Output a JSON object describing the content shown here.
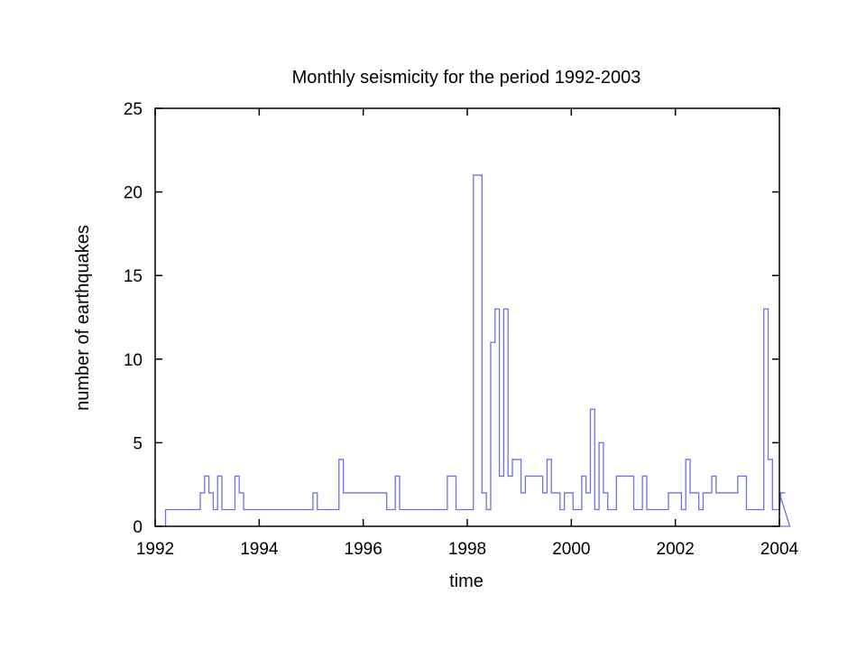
{
  "chart_data": {
    "type": "line",
    "step": "post",
    "title": "Monthly seismicity for the period 1992-2003",
    "xlabel": "time",
    "ylabel": "number of earthquakes",
    "xlim": [
      1992,
      2004
    ],
    "ylim": [
      0,
      25
    ],
    "x_ticks": [
      "1992",
      "1994",
      "1996",
      "1998",
      "2000",
      "2002",
      "2004"
    ],
    "y_ticks": [
      "0",
      "5",
      "10",
      "15",
      "20",
      "25"
    ],
    "grid": false,
    "line_color": "#6f6fe8",
    "x_step_start": 1992.2,
    "x_step_width": 0.0833333,
    "values": [
      1,
      1,
      1,
      1,
      1,
      1,
      1,
      1,
      2,
      3,
      2,
      1,
      3,
      1,
      1,
      1,
      3,
      2,
      1,
      1,
      1,
      1,
      1,
      1,
      1,
      1,
      1,
      1,
      1,
      1,
      1,
      1,
      1,
      1,
      2,
      1,
      1,
      1,
      1,
      1,
      4,
      2,
      2,
      2,
      2,
      2,
      2,
      2,
      2,
      2,
      2,
      1,
      1,
      3,
      1,
      1,
      1,
      1,
      1,
      1,
      1,
      1,
      1,
      1,
      1,
      3,
      3,
      1,
      1,
      1,
      1,
      21,
      21,
      2,
      1,
      11,
      13,
      3,
      13,
      3,
      4,
      4,
      2,
      3,
      3,
      3,
      3,
      2,
      4,
      2,
      2,
      1,
      2,
      2,
      1,
      1,
      3,
      2,
      7,
      1,
      5,
      2,
      1,
      1,
      3,
      3,
      3,
      3,
      1,
      1,
      3,
      1,
      1,
      1,
      1,
      1,
      2,
      2,
      2,
      1,
      4,
      2,
      2,
      1,
      2,
      2,
      3,
      2,
      2,
      2,
      2,
      2,
      3,
      3,
      1,
      1,
      1,
      1,
      13,
      4,
      1,
      1,
      2,
      2,
      0
    ]
  }
}
